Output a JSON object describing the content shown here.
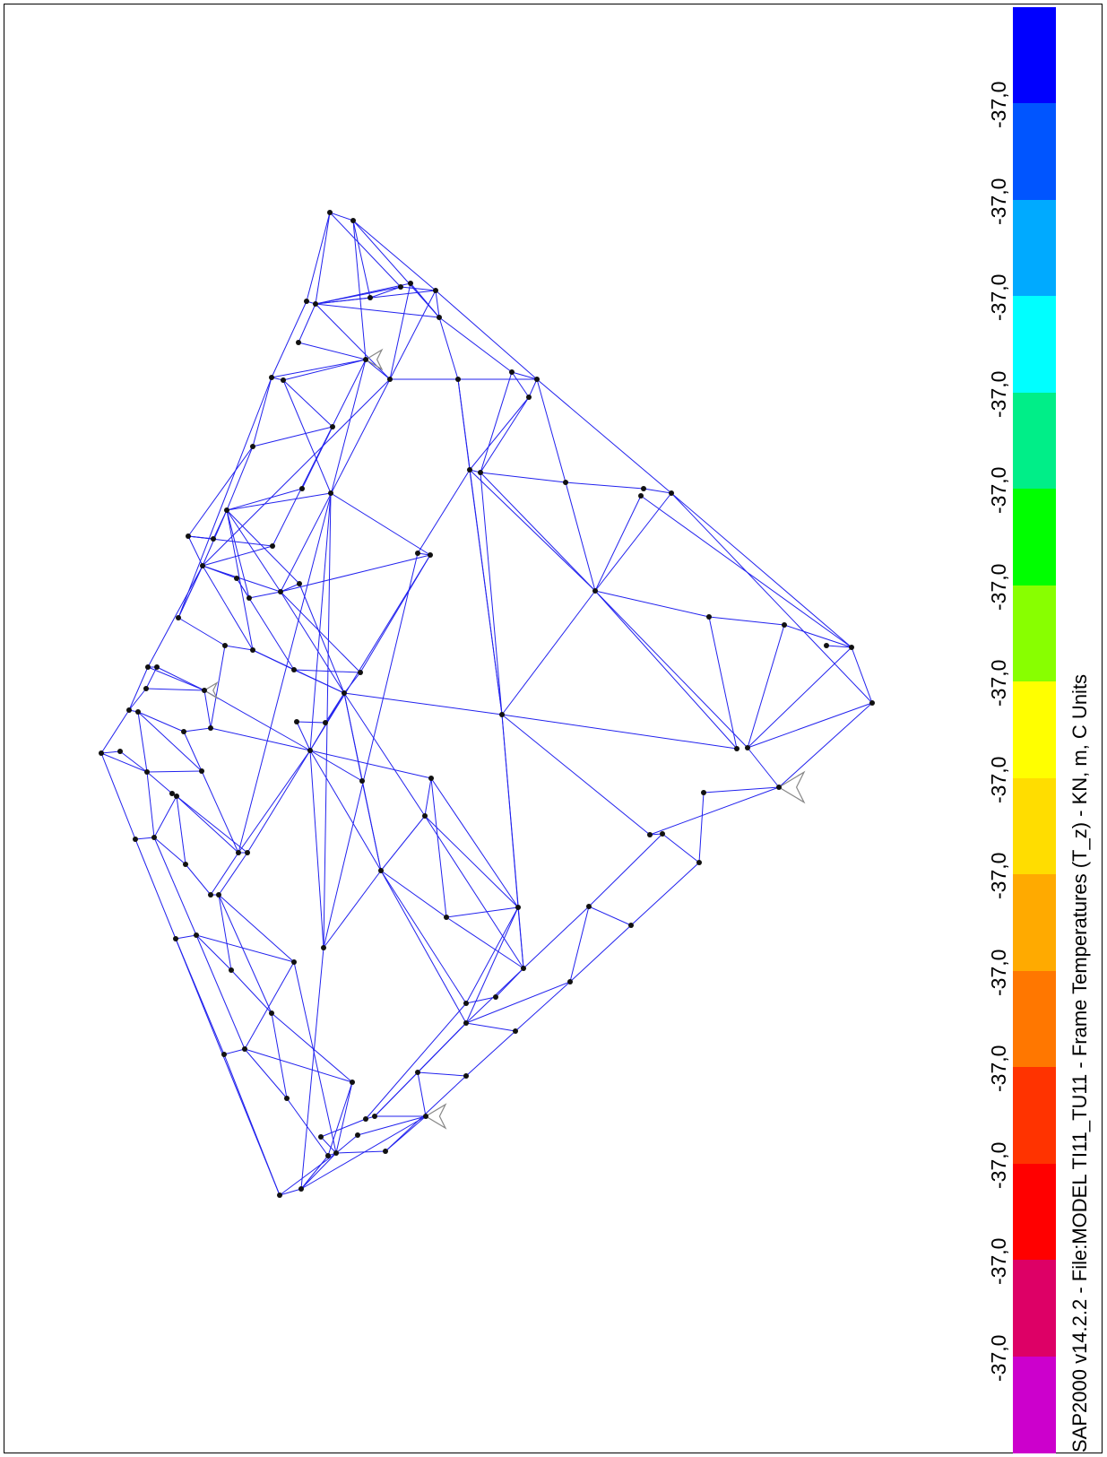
{
  "caption": "SAP2000 v14.2.2 - File:MODEL TI11_TU11 - Frame Temperatures (T_z) - KN, m, C Units",
  "legend": {
    "labels": [
      "-37,0",
      "-37,0",
      "-37,0",
      "-37,0",
      "-37,0",
      "-37,0",
      "-37,0",
      "-37,0",
      "-37,0",
      "-37,0",
      "-37,0",
      "-37,0",
      "-37,0",
      "-37,0"
    ],
    "colors": [
      "#0000ff",
      "#0055ff",
      "#00aaff",
      "#00ffff",
      "#00ee88",
      "#00ff00",
      "#88ff00",
      "#ffff00",
      "#ffdd00",
      "#ffaa00",
      "#ff7700",
      "#ff3300",
      "#ff0000",
      "#dd0066",
      "#cc00cc"
    ]
  },
  "colors": {
    "frame_line": "#2222ee",
    "joint": "#111111",
    "support_symbol": "#888888"
  }
}
